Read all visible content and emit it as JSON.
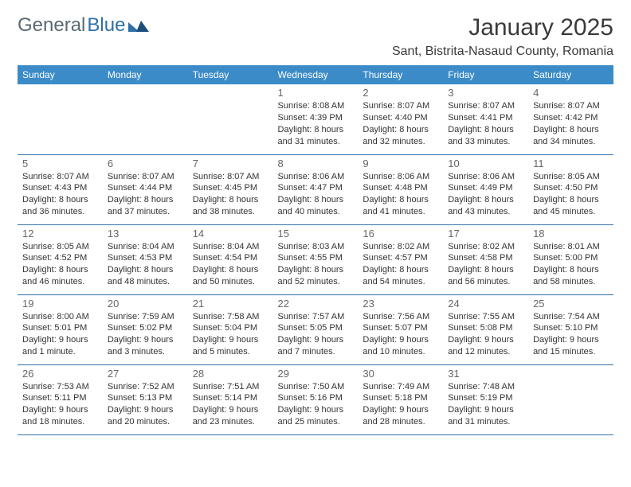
{
  "logo": {
    "part1": "General",
    "part2": "Blue"
  },
  "title": "January 2025",
  "location": "Sant, Bistrita-Nasaud County, Romania",
  "colors": {
    "header_bg": "#3b8bc8",
    "header_text": "#ffffff",
    "divider": "#2f6fa8",
    "logo_gray": "#5a6a72",
    "logo_blue": "#2f6fa8",
    "text": "#333333",
    "daynum": "#666666"
  },
  "day_headers": [
    "Sunday",
    "Monday",
    "Tuesday",
    "Wednesday",
    "Thursday",
    "Friday",
    "Saturday"
  ],
  "weeks": [
    [
      null,
      null,
      null,
      {
        "n": "1",
        "sr": "8:08 AM",
        "ss": "4:39 PM",
        "dl": "8 hours and 31 minutes."
      },
      {
        "n": "2",
        "sr": "8:07 AM",
        "ss": "4:40 PM",
        "dl": "8 hours and 32 minutes."
      },
      {
        "n": "3",
        "sr": "8:07 AM",
        "ss": "4:41 PM",
        "dl": "8 hours and 33 minutes."
      },
      {
        "n": "4",
        "sr": "8:07 AM",
        "ss": "4:42 PM",
        "dl": "8 hours and 34 minutes."
      }
    ],
    [
      {
        "n": "5",
        "sr": "8:07 AM",
        "ss": "4:43 PM",
        "dl": "8 hours and 36 minutes."
      },
      {
        "n": "6",
        "sr": "8:07 AM",
        "ss": "4:44 PM",
        "dl": "8 hours and 37 minutes."
      },
      {
        "n": "7",
        "sr": "8:07 AM",
        "ss": "4:45 PM",
        "dl": "8 hours and 38 minutes."
      },
      {
        "n": "8",
        "sr": "8:06 AM",
        "ss": "4:47 PM",
        "dl": "8 hours and 40 minutes."
      },
      {
        "n": "9",
        "sr": "8:06 AM",
        "ss": "4:48 PM",
        "dl": "8 hours and 41 minutes."
      },
      {
        "n": "10",
        "sr": "8:06 AM",
        "ss": "4:49 PM",
        "dl": "8 hours and 43 minutes."
      },
      {
        "n": "11",
        "sr": "8:05 AM",
        "ss": "4:50 PM",
        "dl": "8 hours and 45 minutes."
      }
    ],
    [
      {
        "n": "12",
        "sr": "8:05 AM",
        "ss": "4:52 PM",
        "dl": "8 hours and 46 minutes."
      },
      {
        "n": "13",
        "sr": "8:04 AM",
        "ss": "4:53 PM",
        "dl": "8 hours and 48 minutes."
      },
      {
        "n": "14",
        "sr": "8:04 AM",
        "ss": "4:54 PM",
        "dl": "8 hours and 50 minutes."
      },
      {
        "n": "15",
        "sr": "8:03 AM",
        "ss": "4:55 PM",
        "dl": "8 hours and 52 minutes."
      },
      {
        "n": "16",
        "sr": "8:02 AM",
        "ss": "4:57 PM",
        "dl": "8 hours and 54 minutes."
      },
      {
        "n": "17",
        "sr": "8:02 AM",
        "ss": "4:58 PM",
        "dl": "8 hours and 56 minutes."
      },
      {
        "n": "18",
        "sr": "8:01 AM",
        "ss": "5:00 PM",
        "dl": "8 hours and 58 minutes."
      }
    ],
    [
      {
        "n": "19",
        "sr": "8:00 AM",
        "ss": "5:01 PM",
        "dl": "9 hours and 1 minute."
      },
      {
        "n": "20",
        "sr": "7:59 AM",
        "ss": "5:02 PM",
        "dl": "9 hours and 3 minutes."
      },
      {
        "n": "21",
        "sr": "7:58 AM",
        "ss": "5:04 PM",
        "dl": "9 hours and 5 minutes."
      },
      {
        "n": "22",
        "sr": "7:57 AM",
        "ss": "5:05 PM",
        "dl": "9 hours and 7 minutes."
      },
      {
        "n": "23",
        "sr": "7:56 AM",
        "ss": "5:07 PM",
        "dl": "9 hours and 10 minutes."
      },
      {
        "n": "24",
        "sr": "7:55 AM",
        "ss": "5:08 PM",
        "dl": "9 hours and 12 minutes."
      },
      {
        "n": "25",
        "sr": "7:54 AM",
        "ss": "5:10 PM",
        "dl": "9 hours and 15 minutes."
      }
    ],
    [
      {
        "n": "26",
        "sr": "7:53 AM",
        "ss": "5:11 PM",
        "dl": "9 hours and 18 minutes."
      },
      {
        "n": "27",
        "sr": "7:52 AM",
        "ss": "5:13 PM",
        "dl": "9 hours and 20 minutes."
      },
      {
        "n": "28",
        "sr": "7:51 AM",
        "ss": "5:14 PM",
        "dl": "9 hours and 23 minutes."
      },
      {
        "n": "29",
        "sr": "7:50 AM",
        "ss": "5:16 PM",
        "dl": "9 hours and 25 minutes."
      },
      {
        "n": "30",
        "sr": "7:49 AM",
        "ss": "5:18 PM",
        "dl": "9 hours and 28 minutes."
      },
      {
        "n": "31",
        "sr": "7:48 AM",
        "ss": "5:19 PM",
        "dl": "9 hours and 31 minutes."
      },
      null
    ]
  ],
  "labels": {
    "sunrise": "Sunrise:",
    "sunset": "Sunset:",
    "daylight": "Daylight:"
  }
}
